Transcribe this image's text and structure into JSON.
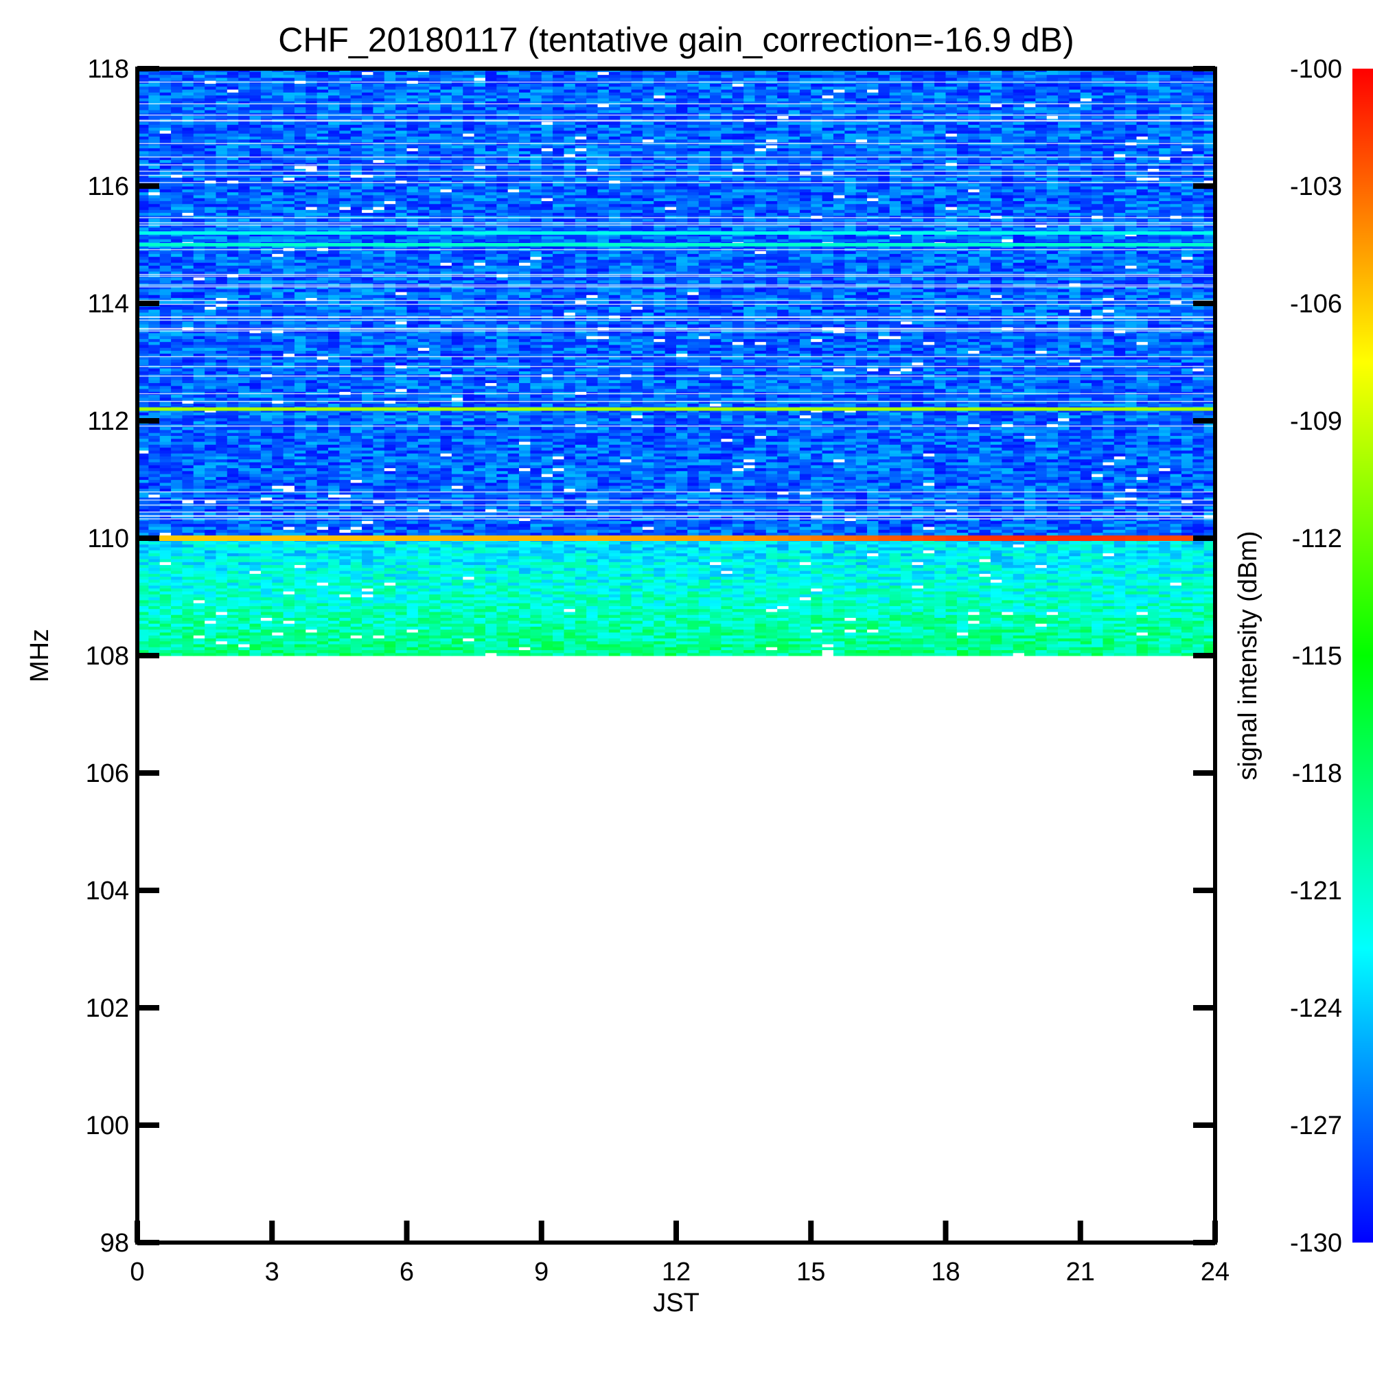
{
  "chart_data": {
    "type": "heatmap",
    "title": "CHF_20180117 (tentative gain_correction=-16.9 dB)",
    "xlabel": "JST",
    "ylabel": "MHz",
    "xlim": [
      0,
      24
    ],
    "ylim": [
      98,
      118
    ],
    "xticks": [
      0,
      3,
      6,
      9,
      12,
      15,
      18,
      21,
      24
    ],
    "yticks": [
      98,
      100,
      102,
      104,
      106,
      108,
      110,
      112,
      114,
      116,
      118
    ],
    "data_extent": {
      "x": [
        0,
        24
      ],
      "y": [
        108,
        118
      ]
    },
    "colorbar": {
      "label": "signal intensity (dBm)",
      "range": [
        -130,
        -100
      ],
      "ticks": [
        -100,
        -103,
        -106,
        -109,
        -112,
        -115,
        -118,
        -121,
        -124,
        -127,
        -130
      ],
      "colormap": [
        "#0000ff",
        "#00ffff",
        "#00ff00",
        "#ffff00",
        "#ff0000"
      ]
    },
    "features": [
      {
        "freq_mhz": 110.0,
        "level_dbm": [
          -106,
          -101
        ],
        "note": "strong carrier, increasing toward 18-22 JST"
      },
      {
        "freq_mhz": 112.2,
        "level_dbm": -110
      },
      {
        "freq_mhz": 115.0,
        "level_dbm": -121
      },
      {
        "freq_mhz": 115.2,
        "level_dbm": -122
      }
    ],
    "background_dbm": {
      "108-110": -119,
      "110-118": -127
    }
  }
}
